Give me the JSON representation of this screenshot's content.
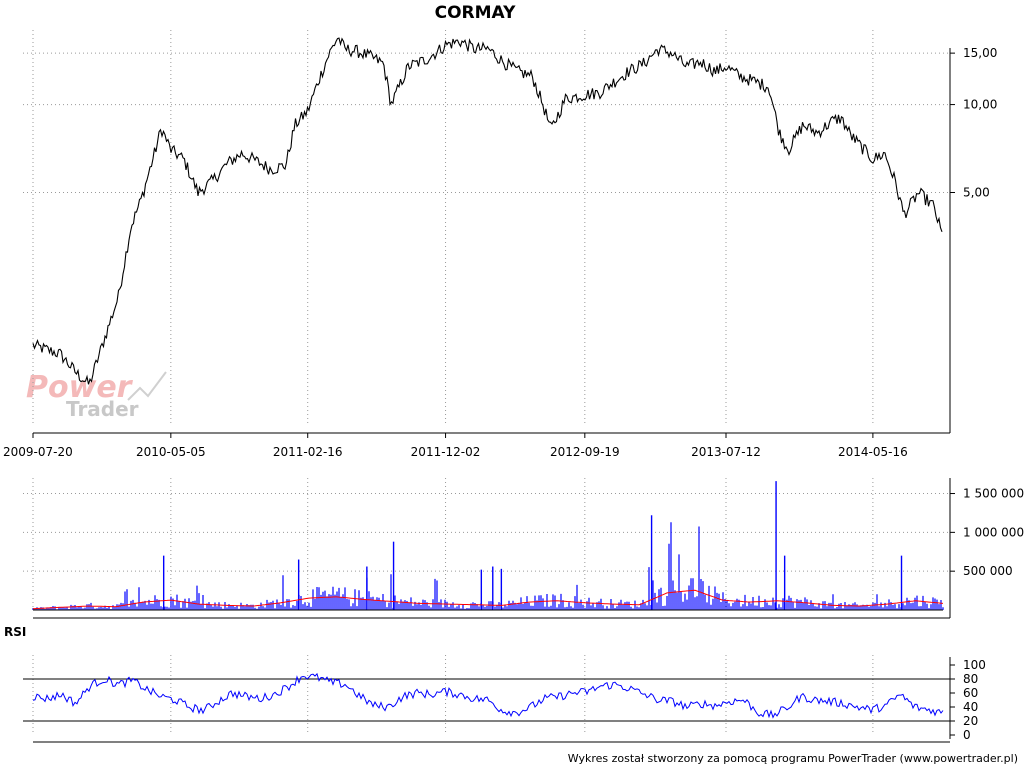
{
  "chart_data": [
    {
      "type": "line",
      "title": "CORMAY",
      "x": [
        "2009-07-20",
        "2009-09-15",
        "2009-10-20",
        "2009-11-15",
        "2010-01-15",
        "2010-02-10",
        "2010-03-05",
        "2010-04-05",
        "2010-04-15",
        "2010-05-05",
        "2010-06-01",
        "2010-07-01",
        "2010-08-01",
        "2010-09-01",
        "2010-10-01",
        "2010-11-01",
        "2010-12-01",
        "2011-01-01",
        "2011-01-20",
        "2011-02-16",
        "2011-03-10",
        "2011-04-01",
        "2011-04-20",
        "2011-05-05",
        "2011-06-01",
        "2011-07-01",
        "2011-07-25",
        "2011-08-10",
        "2011-09-15",
        "2011-10-20",
        "2011-11-15",
        "2011-12-02",
        "2012-01-01",
        "2012-02-01",
        "2012-03-01",
        "2012-04-01",
        "2012-05-01",
        "2012-06-01",
        "2012-06-25",
        "2012-07-10",
        "2012-08-10",
        "2012-09-19",
        "2012-10-20",
        "2012-11-20",
        "2012-12-20",
        "2013-01-20",
        "2013-02-20",
        "2013-03-20",
        "2013-04-20",
        "2013-05-20",
        "2013-06-20",
        "2013-07-12",
        "2013-08-10",
        "2013-09-10",
        "2013-10-10",
        "2013-11-01",
        "2013-11-20",
        "2013-12-20",
        "2014-01-20",
        "2014-02-20",
        "2014-03-10",
        "2014-04-01",
        "2014-05-16",
        "2014-06-10",
        "2014-07-01",
        "2014-07-20",
        "2014-08-20",
        "2014-09-20",
        "2014-10-10"
      ],
      "series": [
        {
          "values": [
            1.5,
            1.4,
            1.2,
            1.1,
            2.2,
            3.8,
            4.8,
            7.2,
            8.3,
            7.0,
            6.5,
            5.0,
            5.5,
            6.3,
            6.8,
            6.4,
            6.0,
            6.2,
            8.5,
            9.5,
            12.0,
            14.8,
            17.0,
            15.5,
            15.2,
            14.5,
            13.8,
            10.0,
            13.5,
            14.2,
            15.2,
            16.0,
            16.5,
            15.5,
            15.5,
            14.0,
            13.0,
            12.5,
            9.8,
            8.2,
            10.5,
            10.8,
            11.0,
            12.0,
            13.0,
            13.8,
            15.5,
            15.0,
            13.5,
            14.0,
            13.0,
            13.5,
            12.5,
            12.0,
            11.5,
            8.0,
            7.0,
            8.5,
            8.0,
            8.8,
            9.0,
            7.8,
            6.5,
            6.8,
            5.5,
            4.2,
            5.0,
            4.5,
            3.5
          ]
        }
      ],
      "xticks": [
        "2009-07-20",
        "2010-05-05",
        "2011-02-16",
        "2011-12-02",
        "2012-09-19",
        "2013-07-12",
        "2014-05-16"
      ],
      "yticks": [
        5,
        10,
        15
      ],
      "ytick_labels": [
        "5,00",
        "10,00",
        "15,00"
      ],
      "ylim": [
        0.8,
        18
      ],
      "yscale": "log",
      "grid": true
    },
    {
      "type": "bar",
      "ylim": [
        0,
        1700000
      ],
      "yticks": [
        500000,
        1000000,
        1500000
      ],
      "ytick_labels": [
        "500 000",
        "1 000 000",
        "1 500 000"
      ],
      "color": "#0000ff",
      "moving_average_color": "#ff0000",
      "baseline": [
        20000,
        40000,
        60000,
        50000,
        120000,
        150000,
        90000,
        70000,
        60000,
        110000,
        180000,
        200000,
        160000,
        130000,
        100000,
        90000,
        80000,
        70000,
        120000,
        140000,
        110000,
        90000,
        80000,
        260000,
        300000,
        150000,
        120000,
        140000,
        110000,
        70000,
        60000,
        90000,
        140000,
        100000
      ],
      "spikes": [
        {
          "x": "2010-04-20",
          "v": 700000
        },
        {
          "x": "2011-01-28",
          "v": 650000
        },
        {
          "x": "2011-06-20",
          "v": 560000
        },
        {
          "x": "2011-08-15",
          "v": 880000
        },
        {
          "x": "2012-02-15",
          "v": 520000
        },
        {
          "x": "2012-03-10",
          "v": 560000
        },
        {
          "x": "2012-03-28",
          "v": 530000
        },
        {
          "x": "2013-02-06",
          "v": 1220000
        },
        {
          "x": "2013-10-25",
          "v": 1660000
        },
        {
          "x": "2013-11-12",
          "v": 700000
        },
        {
          "x": "2014-07-15",
          "v": 700000
        }
      ]
    },
    {
      "type": "line",
      "title": "RSI",
      "ylim": [
        0,
        100
      ],
      "yticks": [
        0,
        20,
        40,
        60,
        80,
        100
      ],
      "ytick_labels": [
        "0",
        "20",
        "40",
        "60",
        "80",
        "100"
      ],
      "reference_lines": [
        20,
        80
      ],
      "color": "#0000ff",
      "values": [
        55,
        52,
        58,
        45,
        70,
        80,
        72,
        78,
        65,
        55,
        50,
        40,
        35,
        48,
        60,
        55,
        52,
        58,
        70,
        85,
        82,
        75,
        72,
        55,
        42,
        40,
        55,
        60,
        58,
        62,
        58,
        52,
        50,
        35,
        32,
        40,
        52,
        55,
        60,
        62,
        70,
        72,
        66,
        58,
        50,
        48,
        40,
        45,
        42,
        48,
        50,
        32,
        28,
        38,
        55,
        50,
        48,
        45,
        40,
        36,
        42,
        58,
        40,
        36,
        32
      ]
    }
  ],
  "footer": "Wykres został stworzony za pomocą programu PowerTrader (www.powertrader.pl)",
  "watermark": {
    "word1": "Power",
    "word2": "Trader"
  },
  "colors": {
    "price": "#000000",
    "volume": "#0000ff",
    "volume_ma": "#ff0000",
    "rsi": "#0000ff"
  }
}
